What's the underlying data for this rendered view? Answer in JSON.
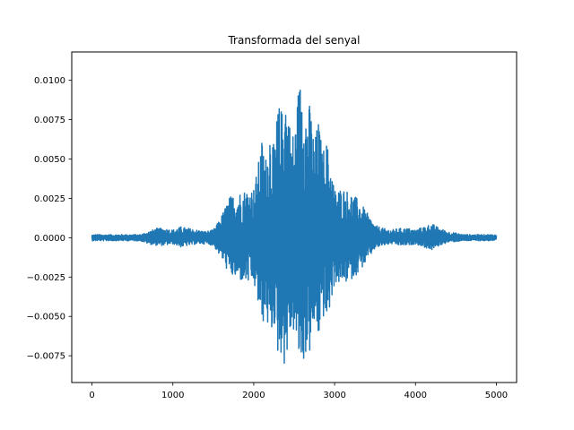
{
  "chart_data": {
    "type": "line",
    "title": "Transformada del senyal",
    "xlabel": "",
    "ylabel": "",
    "xlim": [
      -250,
      5250
    ],
    "ylim": [
      -0.0092,
      0.0118
    ],
    "xticks": [
      0,
      1000,
      2000,
      3000,
      4000,
      5000
    ],
    "xtick_labels": [
      "0",
      "1000",
      "2000",
      "3000",
      "4000",
      "5000"
    ],
    "yticks": [
      -0.0075,
      -0.005,
      -0.0025,
      0.0,
      0.0025,
      0.005,
      0.0075,
      0.01
    ],
    "ytick_labels": [
      "−0.0075",
      "−0.0050",
      "−0.0025",
      "0.0000",
      "0.0025",
      "0.0050",
      "0.0075",
      "0.0100"
    ],
    "grid": false,
    "line_color": "#1f77b4",
    "series": [
      {
        "x": [
          0,
          200,
          400,
          600,
          700,
          800,
          900,
          1000,
          1100,
          1200,
          1300,
          1400,
          1500,
          1550,
          1600,
          1700,
          1800,
          1900,
          2000,
          2050,
          2100,
          2150,
          2200,
          2250,
          2300,
          2350,
          2380,
          2400,
          2450,
          2500,
          2550,
          2600,
          2620,
          2650,
          2700,
          2750,
          2800,
          2850,
          2900,
          2950,
          3000,
          3100,
          3200,
          3300,
          3400,
          3450,
          3500,
          3600,
          3700,
          3800,
          3900,
          4000,
          4100,
          4200,
          4300,
          4400,
          4600,
          4800,
          5000
        ],
        "upper": [
          0.0002,
          0.0002,
          0.0002,
          0.0002,
          0.0004,
          0.0006,
          0.0006,
          0.0005,
          0.0007,
          0.0006,
          0.0005,
          0.0004,
          0.0005,
          0.0009,
          0.0014,
          0.0026,
          0.0029,
          0.0031,
          0.0032,
          0.0045,
          0.0063,
          0.0052,
          0.0072,
          0.0058,
          0.0085,
          0.0082,
          0.0107,
          0.0095,
          0.0072,
          0.0066,
          0.0095,
          0.0107,
          0.0103,
          0.0083,
          0.0086,
          0.0061,
          0.0076,
          0.0055,
          0.0062,
          0.0049,
          0.0031,
          0.0032,
          0.0029,
          0.0024,
          0.0016,
          0.0012,
          0.0008,
          0.0006,
          0.0005,
          0.0006,
          0.0006,
          0.0005,
          0.0007,
          0.0009,
          0.0006,
          0.0004,
          0.0002,
          0.0002,
          0.0002
        ],
        "lower": [
          -0.0002,
          -0.0002,
          -0.0002,
          -0.0002,
          -0.0004,
          -0.0005,
          -0.0005,
          -0.0004,
          -0.0006,
          -0.0005,
          -0.0004,
          -0.0004,
          -0.0005,
          -0.0009,
          -0.0013,
          -0.0024,
          -0.0027,
          -0.0029,
          -0.003,
          -0.0042,
          -0.0058,
          -0.0048,
          -0.0068,
          -0.0055,
          -0.0076,
          -0.0074,
          -0.0082,
          -0.008,
          -0.0063,
          -0.006,
          -0.0079,
          -0.0082,
          -0.0081,
          -0.0072,
          -0.0075,
          -0.0056,
          -0.0066,
          -0.005,
          -0.0055,
          -0.0044,
          -0.0029,
          -0.003,
          -0.0027,
          -0.0022,
          -0.0015,
          -0.0011,
          -0.0007,
          -0.0005,
          -0.0004,
          -0.0005,
          -0.0005,
          -0.0004,
          -0.0006,
          -0.0008,
          -0.0005,
          -0.0003,
          -0.0002,
          -0.0002,
          -0.0002
        ]
      }
    ]
  }
}
